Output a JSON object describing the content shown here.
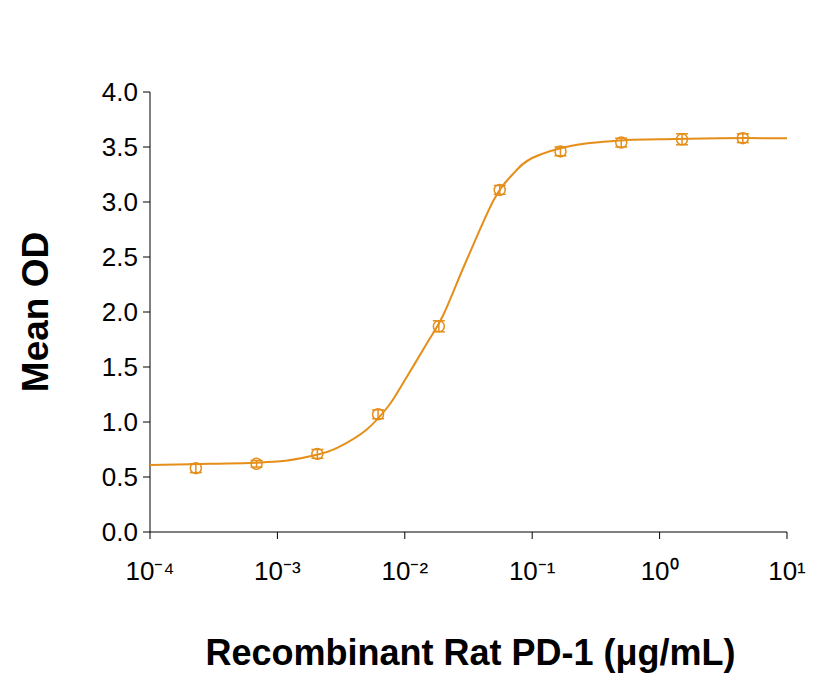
{
  "chart_data": {
    "type": "scatter",
    "x_label": "Recombinant Rat PD-1 (μg/mL)",
    "y_label": "Mean OD",
    "log": "x",
    "grid": false,
    "color": "#e58e1a",
    "xlim": [
      0.0001,
      10
    ],
    "xticks": [
      {
        "value": 0.0001,
        "label": "10⁻⁴"
      },
      {
        "value": 0.001,
        "label": "10⁻³"
      },
      {
        "value": 0.01,
        "label": "10⁻²"
      },
      {
        "value": 0.1,
        "label": "10⁻¹"
      },
      {
        "value": 1,
        "label": "10⁰"
      },
      {
        "value": 10,
        "label": "10¹"
      }
    ],
    "ylim": [
      0,
      4
    ],
    "yticks": [
      {
        "value": 0,
        "label": "0.0"
      },
      0.5,
      {
        "value": 1,
        "label": "1.0"
      },
      1.5,
      {
        "value": 2,
        "label": "2.0"
      },
      2.5,
      {
        "value": 3,
        "label": "3.0"
      },
      3.5,
      {
        "value": 4,
        "label": "4.0"
      }
    ],
    "series": [
      {
        "type": "scatter",
        "marker": "circle",
        "color": "#e58e1a",
        "x": [
          0.000229,
          0.000686,
          0.00206,
          0.00617,
          0.0185,
          0.0556,
          0.1667,
          0.5,
          1.5,
          4.5
        ],
        "values": [
          0.58,
          0.62,
          0.71,
          1.07,
          1.87,
          3.11,
          3.46,
          3.54,
          3.57,
          3.58
        ],
        "errors": [
          0.04,
          0.03,
          0.04,
          0.04,
          0.05,
          0.04,
          0.04,
          0.04,
          0.05,
          0.04
        ]
      },
      {
        "type": "line",
        "line_style": "solid",
        "color": "#e58e1a",
        "x": [
          0.0001,
          0.0003,
          0.001,
          0.002,
          0.003,
          0.005,
          0.0075,
          0.01,
          0.015,
          0.02,
          0.03,
          0.05,
          0.07,
          0.1,
          0.2,
          0.5,
          1,
          3,
          10
        ],
        "values": [
          0.61,
          0.62,
          0.64,
          0.7,
          0.77,
          0.93,
          1.15,
          1.38,
          1.72,
          1.97,
          2.45,
          3.02,
          3.25,
          3.4,
          3.51,
          3.56,
          3.57,
          3.58,
          3.58
        ]
      }
    ]
  }
}
